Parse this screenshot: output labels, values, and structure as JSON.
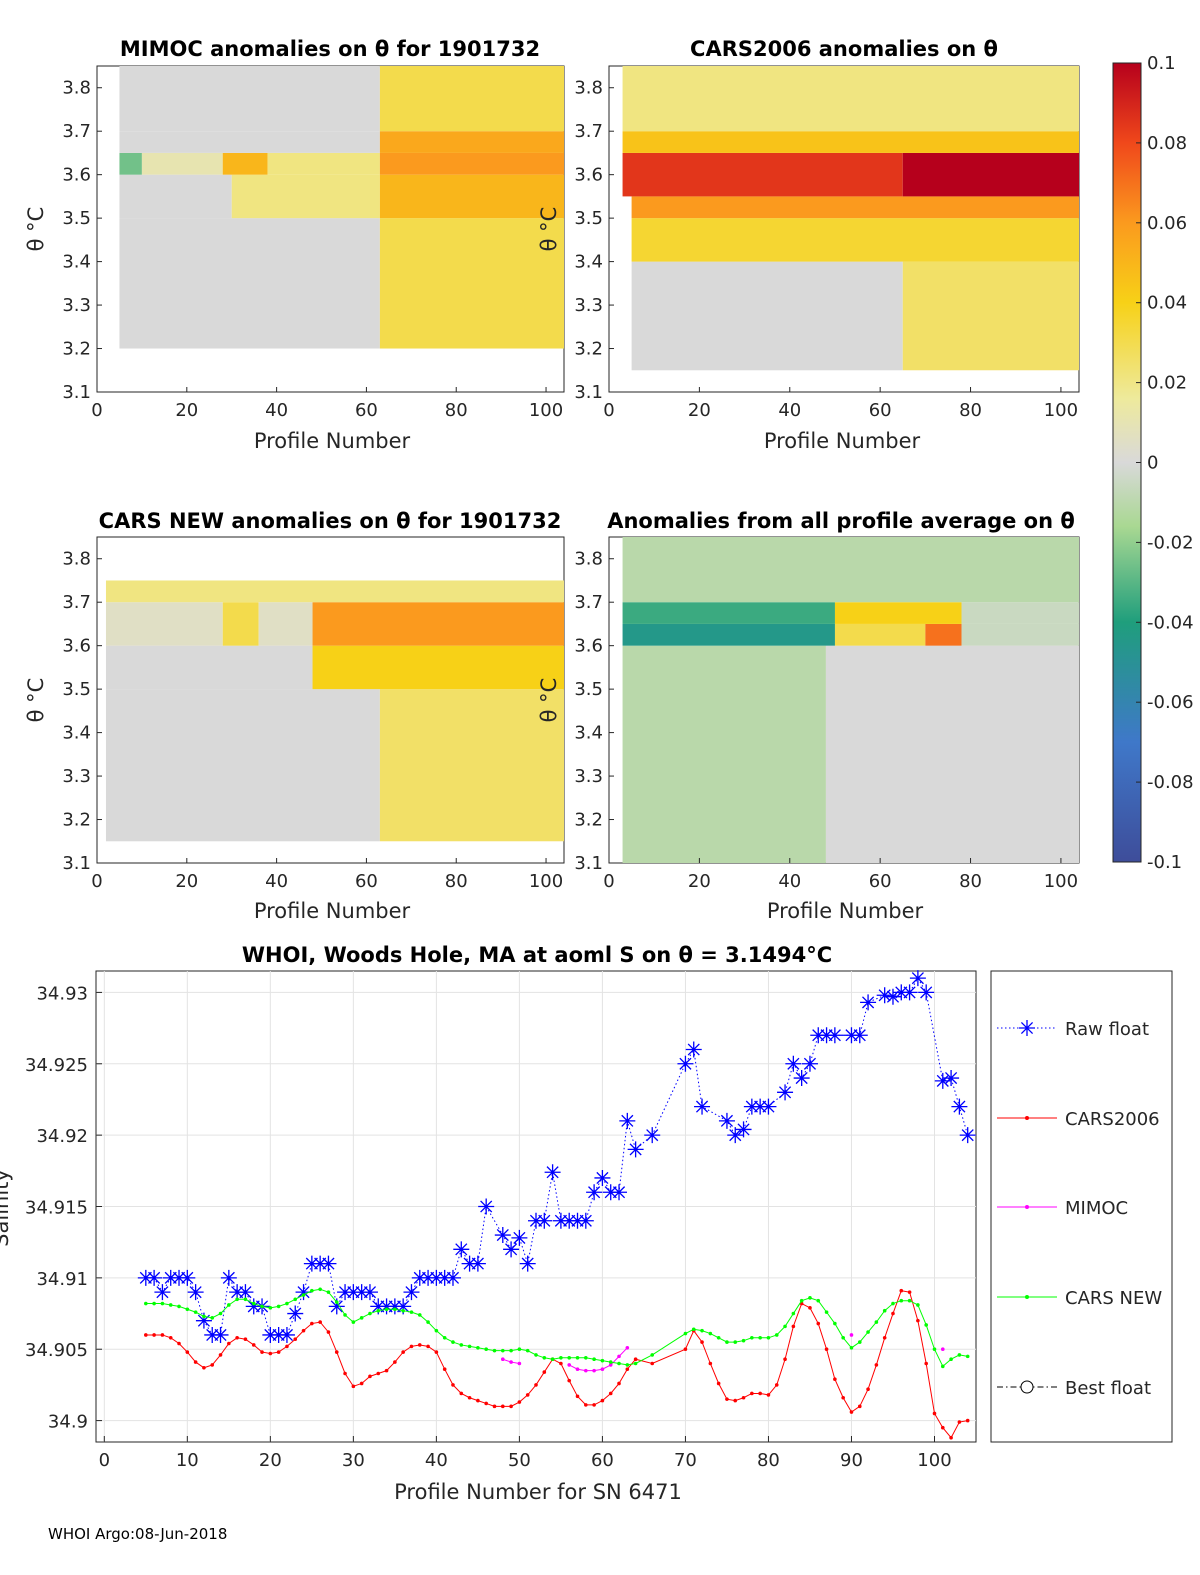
{
  "footer": "WHOI Argo:08-Jun-2018",
  "colors": {
    "raw": "#0000ff",
    "cars2006": "#ff0000",
    "mimoc": "#ff00ff",
    "carsnew": "#00ff00",
    "best": "#000000"
  },
  "colorbar": {
    "ticks": [
      "0.1",
      "0.08",
      "0.06",
      "0.04",
      "0.02",
      "0",
      "-0.02",
      "-0.04",
      "-0.06",
      "-0.08",
      "-0.1"
    ],
    "range": [
      -0.1,
      0.1
    ]
  },
  "chart_data": [
    {
      "type": "heatmap",
      "title": "MIMOC anomalies on θ  for 1901732",
      "xlabel": "Profile Number",
      "ylabel": "θ °C",
      "xlim": [
        0,
        104
      ],
      "ylim": [
        3.1,
        3.85
      ],
      "xticks": [
        "0",
        "20",
        "40",
        "60",
        "80",
        "100"
      ],
      "yticks": [
        "3.1",
        "3.2",
        "3.3",
        "3.4",
        "3.5",
        "3.6",
        "3.7",
        "3.8"
      ],
      "bands": [
        {
          "from": 3.2,
          "to": 3.5,
          "cols": [
            [
              5,
              63,
              0.0
            ],
            [
              63,
              104,
              0.03
            ]
          ]
        },
        {
          "from": 3.5,
          "to": 3.6,
          "cols": [
            [
              5,
              30,
              0.0
            ],
            [
              30,
              63,
              0.02
            ],
            [
              63,
              104,
              0.05
            ]
          ]
        },
        {
          "from": 3.6,
          "to": 3.65,
          "cols": [
            [
              5,
              10,
              -0.025
            ],
            [
              10,
              28,
              0.01
            ],
            [
              28,
              38,
              0.05
            ],
            [
              38,
              63,
              0.02
            ],
            [
              63,
              104,
              0.06
            ]
          ]
        },
        {
          "from": 3.65,
          "to": 3.7,
          "cols": [
            [
              5,
              63,
              0.0
            ],
            [
              63,
              104,
              0.055
            ]
          ]
        },
        {
          "from": 3.7,
          "to": 3.85,
          "cols": [
            [
              5,
              63,
              0.0
            ],
            [
              63,
              104,
              0.03
            ]
          ]
        }
      ]
    },
    {
      "type": "heatmap",
      "title": "CARS2006 anomalies on θ",
      "xlabel": "Profile Number",
      "ylabel": "",
      "xlim": [
        0,
        104
      ],
      "ylim": [
        3.1,
        3.85
      ],
      "xticks": [
        "0",
        "20",
        "40",
        "60",
        "80",
        "100"
      ],
      "yticks": [
        "3.1",
        "3.2",
        "3.3",
        "3.4",
        "3.5",
        "3.6",
        "3.7",
        "3.8"
      ],
      "bands": [
        {
          "from": 3.15,
          "to": 3.4,
          "cols": [
            [
              5,
              65,
              0.0
            ],
            [
              65,
              104,
              0.025
            ]
          ]
        },
        {
          "from": 3.4,
          "to": 3.5,
          "cols": [
            [
              5,
              104,
              0.035
            ]
          ]
        },
        {
          "from": 3.5,
          "to": 3.55,
          "cols": [
            [
              5,
              104,
              0.06
            ]
          ]
        },
        {
          "from": 3.55,
          "to": 3.65,
          "cols": [
            [
              3,
              65,
              0.085
            ],
            [
              65,
              104,
              0.1
            ]
          ]
        },
        {
          "from": 3.65,
          "to": 3.7,
          "cols": [
            [
              3,
              104,
              0.045
            ]
          ]
        },
        {
          "from": 3.7,
          "to": 3.85,
          "cols": [
            [
              3,
              104,
              0.02
            ]
          ]
        }
      ]
    },
    {
      "type": "heatmap",
      "title": "CARS NEW anomalies on θ for 1901732",
      "xlabel": "Profile Number",
      "ylabel": "θ °C",
      "xlim": [
        0,
        104
      ],
      "ylim": [
        3.1,
        3.85
      ],
      "xticks": [
        "0",
        "20",
        "40",
        "60",
        "80",
        "100"
      ],
      "yticks": [
        "3.1",
        "3.2",
        "3.3",
        "3.4",
        "3.5",
        "3.6",
        "3.7",
        "3.8"
      ],
      "bands": [
        {
          "from": 3.15,
          "to": 3.5,
          "cols": [
            [
              2,
              63,
              0.0
            ],
            [
              63,
              104,
              0.025
            ]
          ]
        },
        {
          "from": 3.5,
          "to": 3.6,
          "cols": [
            [
              2,
              48,
              0.0
            ],
            [
              48,
              104,
              0.04
            ]
          ]
        },
        {
          "from": 3.6,
          "to": 3.7,
          "cols": [
            [
              2,
              28,
              0.005
            ],
            [
              28,
              36,
              0.03
            ],
            [
              36,
              48,
              0.005
            ],
            [
              48,
              104,
              0.06
            ]
          ]
        },
        {
          "from": 3.7,
          "to": 3.75,
          "cols": [
            [
              2,
              104,
              0.02
            ]
          ]
        }
      ]
    },
    {
      "type": "heatmap",
      "title": "Anomalies from all profile average on θ",
      "xlabel": "Profile Number",
      "ylabel": "θ °C",
      "xlim": [
        0,
        104
      ],
      "ylim": [
        3.1,
        3.85
      ],
      "xticks": [
        "0",
        "20",
        "40",
        "60",
        "80",
        "100"
      ],
      "yticks": [
        "3.1",
        "3.2",
        "3.3",
        "3.4",
        "3.5",
        "3.6",
        "3.7",
        "3.8"
      ],
      "bands": [
        {
          "from": 3.1,
          "to": 3.6,
          "cols": [
            [
              3,
              48,
              -0.01
            ],
            [
              48,
              104,
              0.0
            ]
          ]
        },
        {
          "from": 3.6,
          "to": 3.65,
          "cols": [
            [
              3,
              50,
              -0.045
            ],
            [
              50,
              70,
              0.03
            ],
            [
              70,
              78,
              0.07
            ],
            [
              78,
              104,
              -0.005
            ]
          ]
        },
        {
          "from": 3.65,
          "to": 3.7,
          "cols": [
            [
              3,
              50,
              -0.035
            ],
            [
              50,
              78,
              0.04
            ],
            [
              78,
              104,
              -0.005
            ]
          ]
        },
        {
          "from": 3.7,
          "to": 3.85,
          "cols": [
            [
              3,
              104,
              -0.01
            ]
          ]
        }
      ]
    },
    {
      "type": "line",
      "title": "WHOI, Woods Hole, MA at aoml S on θ = 3.1494°C",
      "xlabel": "Profile Number for SN 6471",
      "ylabel": "Salinity",
      "xlim": [
        -1,
        105
      ],
      "ylim": [
        34.8985,
        34.9315
      ],
      "xticks": [
        "0",
        "10",
        "20",
        "30",
        "40",
        "50",
        "60",
        "70",
        "80",
        "90",
        "100"
      ],
      "yticks": [
        "34.9",
        "34.905",
        "34.91",
        "34.915",
        "34.92",
        "34.925",
        "34.93"
      ],
      "series": [
        {
          "name": "Raw float",
          "style": "dotted-star",
          "x": [
            5,
            6,
            7,
            8,
            9,
            10,
            11,
            12,
            13,
            14,
            15,
            16,
            17,
            18,
            19,
            20,
            21,
            22,
            23,
            24,
            25,
            26,
            27,
            28,
            29,
            30,
            31,
            32,
            33,
            34,
            35,
            36,
            37,
            38,
            39,
            40,
            41,
            42,
            43,
            44,
            45,
            46,
            48,
            49,
            50,
            51,
            52,
            53,
            54,
            55,
            56,
            57,
            58,
            59,
            60,
            61,
            62,
            63,
            64,
            66,
            70,
            71,
            72,
            75,
            76,
            77,
            78,
            79,
            80,
            82,
            83,
            84,
            85,
            86,
            87,
            88,
            90,
            91,
            92,
            94,
            95,
            96,
            97,
            98,
            99,
            101,
            102,
            103,
            104
          ],
          "y": [
            34.91,
            34.91,
            34.909,
            34.91,
            34.91,
            34.91,
            34.909,
            34.907,
            34.906,
            34.906,
            34.91,
            34.909,
            34.909,
            34.908,
            34.908,
            34.906,
            34.906,
            34.906,
            34.9075,
            34.909,
            34.911,
            34.911,
            34.911,
            34.908,
            34.909,
            34.909,
            34.909,
            34.909,
            34.908,
            34.908,
            34.908,
            34.908,
            34.909,
            34.91,
            34.91,
            34.91,
            34.91,
            34.91,
            34.912,
            34.911,
            34.911,
            34.915,
            34.913,
            34.912,
            34.9128,
            34.911,
            34.914,
            34.914,
            34.9174,
            34.914,
            34.914,
            34.914,
            34.914,
            34.916,
            34.917,
            34.916,
            34.916,
            34.921,
            34.919,
            34.92,
            34.925,
            34.926,
            34.922,
            34.921,
            34.92,
            34.9204,
            34.922,
            34.922,
            34.922,
            34.923,
            34.925,
            34.924,
            34.925,
            34.927,
            34.927,
            34.927,
            34.927,
            34.927,
            34.9293,
            34.9298,
            34.9297,
            34.93,
            34.93,
            34.931,
            34.93,
            34.9238,
            34.924,
            34.922,
            34.92
          ]
        },
        {
          "name": "CARS2006",
          "style": "solid-dot",
          "x": [
            5,
            6,
            7,
            8,
            9,
            10,
            11,
            12,
            13,
            14,
            15,
            16,
            17,
            18,
            19,
            20,
            21,
            22,
            23,
            24,
            25,
            26,
            27,
            28,
            29,
            30,
            31,
            32,
            33,
            34,
            35,
            36,
            37,
            38,
            39,
            40,
            41,
            42,
            43,
            44,
            45,
            46,
            47,
            48,
            49,
            50,
            51,
            52,
            53,
            54,
            55,
            56,
            57,
            58,
            59,
            60,
            61,
            62,
            63,
            64,
            66,
            70,
            71,
            72,
            73,
            74,
            75,
            76,
            77,
            78,
            79,
            80,
            81,
            82,
            83,
            84,
            85,
            86,
            87,
            88,
            89,
            90,
            91,
            92,
            93,
            94,
            95,
            96,
            97,
            98,
            99,
            100,
            101,
            102,
            103,
            104
          ],
          "y": [
            34.906,
            34.906,
            34.906,
            34.9058,
            34.9054,
            34.9048,
            34.9041,
            34.9037,
            34.9039,
            34.9046,
            34.9054,
            34.9058,
            34.9057,
            34.9053,
            34.9048,
            34.9047,
            34.9048,
            34.9052,
            34.9057,
            34.9063,
            34.9068,
            34.9069,
            34.9062,
            34.9048,
            34.9033,
            34.9024,
            34.9026,
            34.9031,
            34.9033,
            34.9035,
            34.9041,
            34.9048,
            34.9052,
            34.9053,
            34.9052,
            34.9048,
            34.9036,
            34.9025,
            34.9019,
            34.9016,
            34.9014,
            34.9012,
            34.901,
            34.901,
            34.901,
            34.9013,
            34.9018,
            34.9025,
            34.9034,
            34.9043,
            34.904,
            34.9028,
            34.9017,
            34.9011,
            34.9011,
            34.9014,
            34.9019,
            34.9026,
            34.9036,
            34.9043,
            34.904,
            34.905,
            34.9063,
            34.9055,
            34.904,
            34.9026,
            34.9015,
            34.9014,
            34.9016,
            34.9019,
            34.9019,
            34.9018,
            34.9025,
            34.9043,
            34.9066,
            34.9082,
            34.9079,
            34.9068,
            34.905,
            34.9029,
            34.9016,
            34.9006,
            34.901,
            34.9022,
            34.9039,
            34.9058,
            34.9075,
            34.9091,
            34.909,
            34.907,
            34.904,
            34.9005,
            34.8995,
            34.8988,
            34.8999,
            34.9
          ]
        },
        {
          "name": "MIMOC",
          "style": "solid-dot",
          "x": [
            48,
            49,
            50,
            56,
            57,
            58,
            59,
            60,
            61,
            62,
            63,
            90,
            101
          ],
          "y": [
            34.9043,
            34.9041,
            34.904,
            34.9039,
            34.9036,
            34.9035,
            34.9035,
            34.9036,
            34.9039,
            34.9045,
            34.9051,
            34.906,
            34.905
          ]
        },
        {
          "name": "CARS NEW",
          "style": "solid-dot",
          "x": [
            5,
            6,
            7,
            8,
            9,
            10,
            11,
            12,
            13,
            14,
            15,
            16,
            17,
            18,
            19,
            20,
            21,
            22,
            23,
            24,
            25,
            26,
            27,
            28,
            29,
            30,
            31,
            32,
            33,
            34,
            35,
            36,
            37,
            38,
            39,
            40,
            41,
            42,
            43,
            44,
            45,
            46,
            47,
            48,
            49,
            50,
            51,
            52,
            53,
            54,
            55,
            56,
            57,
            58,
            59,
            60,
            61,
            62,
            63,
            64,
            66,
            70,
            71,
            72,
            73,
            74,
            75,
            76,
            77,
            78,
            79,
            80,
            81,
            82,
            83,
            84,
            85,
            86,
            87,
            88,
            89,
            90,
            91,
            92,
            93,
            94,
            95,
            96,
            97,
            98,
            99,
            100,
            101,
            102,
            103,
            104
          ],
          "y": [
            34.9082,
            34.9082,
            34.9082,
            34.9081,
            34.908,
            34.9078,
            34.9076,
            34.9073,
            34.9072,
            34.9075,
            34.9081,
            34.9085,
            34.9085,
            34.9082,
            34.908,
            34.9079,
            34.908,
            34.9082,
            34.9085,
            34.9088,
            34.9091,
            34.9092,
            34.909,
            34.9083,
            34.9074,
            34.9069,
            34.9072,
            34.9075,
            34.9077,
            34.9078,
            34.9078,
            34.9077,
            34.9076,
            34.9074,
            34.9069,
            34.9063,
            34.9058,
            34.9055,
            34.9053,
            34.9052,
            34.9051,
            34.905,
            34.9049,
            34.9049,
            34.9049,
            34.905,
            34.9049,
            34.9046,
            34.9044,
            34.9043,
            34.9044,
            34.9044,
            34.9044,
            34.9044,
            34.9043,
            34.9042,
            34.9041,
            34.904,
            34.9039,
            34.904,
            34.9046,
            34.9061,
            34.9064,
            34.9063,
            34.9061,
            34.9058,
            34.9055,
            34.9055,
            34.9056,
            34.9058,
            34.9058,
            34.9058,
            34.906,
            34.9066,
            34.9075,
            34.9084,
            34.9086,
            34.9084,
            34.9076,
            34.9068,
            34.9058,
            34.9051,
            34.9055,
            34.9062,
            34.9069,
            34.9077,
            34.9082,
            34.9084,
            34.9084,
            34.9081,
            34.9067,
            34.905,
            34.9038,
            34.9043,
            34.9046,
            34.9045
          ]
        },
        {
          "name": "Best float",
          "style": "dashdot-circle",
          "x": [],
          "y": []
        }
      ],
      "legend": "outside-right"
    }
  ]
}
